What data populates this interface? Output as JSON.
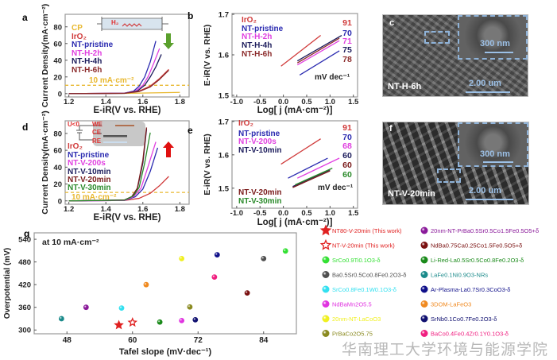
{
  "chart_data": [
    {
      "panel_label": "a",
      "type": "line",
      "xlabel": "E-iR(V vs. RHE)",
      "ylabel": "Current Density(mA·cm⁻²)",
      "xlim": [
        1.18,
        1.85
      ],
      "ylim": [
        -4,
        95
      ],
      "xticks": [
        "1.2",
        "1.4",
        "1.6",
        "1.8"
      ],
      "yticks": [
        "0",
        "20",
        "40",
        "60",
        "80"
      ],
      "reference": {
        "y": 10,
        "label": "10 mA·cm⁻²",
        "color": "#e8b830"
      },
      "arrow": {
        "direction": "down",
        "color": "#5aa02c"
      },
      "inset_labels": [
        "H₂"
      ],
      "series": [
        {
          "name": "CP",
          "color": "#e8b830",
          "points": [
            [
              1.2,
              0
            ],
            [
              1.5,
              0.3
            ],
            [
              1.8,
              1.5
            ]
          ]
        },
        {
          "name": "IrO₂",
          "color": "#d03a3a",
          "points": [
            [
              1.2,
              0
            ],
            [
              1.5,
              0.5
            ],
            [
              1.58,
              3
            ],
            [
              1.64,
              9
            ],
            [
              1.69,
              18
            ],
            [
              1.74,
              29
            ]
          ]
        },
        {
          "name": "NT-pristine",
          "color": "#2a2ab0",
          "points": [
            [
              1.2,
              0
            ],
            [
              1.5,
              0.5
            ],
            [
              1.55,
              3
            ],
            [
              1.58,
              9
            ],
            [
              1.61,
              20
            ],
            [
              1.64,
              38
            ],
            [
              1.67,
              63
            ]
          ]
        },
        {
          "name": "NT-H-2h",
          "color": "#e040e0",
          "points": [
            [
              1.2,
              0
            ],
            [
              1.5,
              0.4
            ],
            [
              1.56,
              3
            ],
            [
              1.6,
              10
            ],
            [
              1.63,
              21
            ],
            [
              1.66,
              37
            ],
            [
              1.69,
              54
            ]
          ]
        },
        {
          "name": "NT-H-4h",
          "color": "#1c1c5c",
          "points": [
            [
              1.2,
              0
            ],
            [
              1.5,
              0.3
            ],
            [
              1.57,
              3
            ],
            [
              1.61,
              10
            ],
            [
              1.64,
              20
            ],
            [
              1.67,
              32
            ],
            [
              1.7,
              47
            ]
          ]
        },
        {
          "name": "NT-H-6h",
          "color": "#8b2a2a",
          "points": [
            [
              1.2,
              0
            ],
            [
              1.5,
              0.4
            ],
            [
              1.58,
              2.5
            ],
            [
              1.64,
              8
            ],
            [
              1.69,
              17
            ],
            [
              1.74,
              28
            ]
          ]
        }
      ]
    },
    {
      "panel_label": "b",
      "type": "line",
      "xlabel": "Log[ j (mA·cm⁻²)]",
      "ylabel": "E-iR(V vs. RHE)",
      "xlim": [
        -1.1,
        1.59
      ],
      "ylim": [
        1.496,
        1.702
      ],
      "xticks": [
        "-1.0",
        "-0.5",
        "0.0",
        "0.5",
        "1.0",
        "1.5"
      ],
      "yticks": [
        "1.5",
        "1.6",
        "1.7"
      ],
      "unit_label": "mV dec⁻¹",
      "series": [
        {
          "name": "IrO₂",
          "color": "#d03a3a",
          "tafel_slope": "91",
          "points": [
            [
              -0.05,
              1.572
            ],
            [
              0.8,
              1.648
            ]
          ]
        },
        {
          "name": "NT-pristine",
          "color": "#2a2ab0",
          "tafel_slope": "70",
          "points": [
            [
              0.35,
              1.55
            ],
            [
              1.2,
              1.61
            ]
          ]
        },
        {
          "name": "NT-H-2h",
          "color": "#e040e0",
          "tafel_slope": "71",
          "points": [
            [
              0.3,
              1.575
            ],
            [
              1.2,
              1.635
            ]
          ]
        },
        {
          "name": "NT-H-4h",
          "color": "#1c1c5c",
          "tafel_slope": "75",
          "points": [
            [
              0.3,
              1.585
            ],
            [
              1.25,
              1.648
            ]
          ]
        },
        {
          "name": "NT-H-6h",
          "color": "#8b2a2a",
          "tafel_slope": "78",
          "points": [
            [
              0.3,
              1.58
            ],
            [
              1.2,
              1.641
            ]
          ]
        }
      ]
    },
    {
      "panel_label": "d",
      "type": "line",
      "xlabel": "E-iR(V vs. RHE)",
      "ylabel": "Current Density(mA·cm⁻²)",
      "xlim": [
        1.18,
        1.85
      ],
      "ylim": [
        -4,
        95
      ],
      "xticks": [
        "1.2",
        "1.4",
        "1.6",
        "1.8"
      ],
      "yticks": [
        "0",
        "20",
        "40",
        "60",
        "80"
      ],
      "reference": {
        "y": 10,
        "label": "10 mA·cm⁻²",
        "color": "#e8b830"
      },
      "arrow": {
        "direction": "up",
        "color": "#e01010"
      },
      "inset_labels": [
        "U<0",
        "WE",
        "CE",
        "RE"
      ],
      "series": [
        {
          "name": "IrO₂",
          "color": "#d03a3a",
          "points": [
            [
              1.2,
              0
            ],
            [
              1.5,
              0.5
            ],
            [
              1.58,
              3
            ],
            [
              1.64,
              9
            ],
            [
              1.69,
              18
            ],
            [
              1.74,
              29
            ]
          ]
        },
        {
          "name": "NT-pristine",
          "color": "#2a2ab0",
          "points": [
            [
              1.2,
              0
            ],
            [
              1.5,
              0.5
            ],
            [
              1.56,
              5
            ],
            [
              1.6,
              14
            ],
            [
              1.64,
              35
            ],
            [
              1.68,
              63
            ]
          ]
        },
        {
          "name": "NT-V-200s",
          "color": "#e040e0",
          "points": [
            [
              1.2,
              0
            ],
            [
              1.5,
              0.5
            ],
            [
              1.55,
              5
            ],
            [
              1.59,
              15
            ],
            [
              1.63,
              42
            ],
            [
              1.67,
              70
            ]
          ]
        },
        {
          "name": "NT-V-10min",
          "color": "#1c1c5c",
          "points": [
            [
              1.2,
              0
            ],
            [
              1.5,
              1
            ],
            [
              1.54,
              5
            ],
            [
              1.57,
              14
            ],
            [
              1.6,
              45
            ],
            [
              1.62,
              85
            ]
          ]
        },
        {
          "name": "NT-V-20min",
          "color": "#7a1a1a",
          "points": [
            [
              1.2,
              0
            ],
            [
              1.5,
              1
            ],
            [
              1.54,
              5
            ],
            [
              1.57,
              15
            ],
            [
              1.6,
              48
            ],
            [
              1.62,
              87
            ]
          ]
        },
        {
          "name": "NT-V-30min",
          "color": "#2a8a2a",
          "points": [
            [
              1.2,
              0
            ],
            [
              1.5,
              0.8
            ],
            [
              1.55,
              6
            ],
            [
              1.58,
              16
            ],
            [
              1.61,
              45
            ],
            [
              1.64,
              81
            ]
          ]
        }
      ]
    },
    {
      "panel_label": "e",
      "type": "line",
      "xlabel": "Log[ j (mA·cm⁻²)]",
      "ylabel": "E-iR(V vs. RHE)",
      "xlim": [
        -1.1,
        1.59
      ],
      "ylim": [
        1.44,
        1.702
      ],
      "xticks": [
        "-1.0",
        "-0.5",
        "0.0",
        "0.5",
        "1.0",
        "1.5"
      ],
      "yticks": [
        "1.5",
        "1.6",
        "1.7"
      ],
      "unit_label": "mV dec⁻¹",
      "series": [
        {
          "name": "IrO₂",
          "color": "#d03a3a",
          "tafel_slope": "91",
          "points": [
            [
              -0.05,
              1.572
            ],
            [
              0.8,
              1.648
            ]
          ]
        },
        {
          "name": "NT-pristine",
          "color": "#2a2ab0",
          "tafel_slope": "70",
          "points": [
            [
              0.1,
              1.53
            ],
            [
              0.95,
              1.59
            ]
          ]
        },
        {
          "name": "NT-V-200s",
          "color": "#e040e0",
          "tafel_slope": "68",
          "points": [
            [
              0.3,
              1.53
            ],
            [
              1.2,
              1.59
            ]
          ]
        },
        {
          "name": "NT-V-10min",
          "color": "#1c1c5c",
          "tafel_slope": "60",
          "points": [
            [
              0.2,
              1.505
            ],
            [
              1.0,
              1.555
            ]
          ]
        },
        {
          "name": "NT-V-20min",
          "color": "#7a1a1a",
          "tafel_slope": "60",
          "points": [
            [
              0.2,
              1.502
            ],
            [
              1.0,
              1.552
            ]
          ]
        },
        {
          "name": "NT-V-30min",
          "color": "#2a8a2a",
          "tafel_slope": "60",
          "points": [
            [
              0.25,
              1.51
            ],
            [
              1.05,
              1.56
            ]
          ]
        }
      ]
    },
    {
      "panel_label": "g",
      "type": "scatter",
      "annotation": "at 10 mA·cm⁻²",
      "xlabel": "Tafel slope (mV·dec⁻¹)",
      "ylabel": "Overpotential (mV)",
      "xlim": [
        42,
        90
      ],
      "ylim": [
        290,
        557
      ],
      "xticks": [
        "48",
        "60",
        "72",
        "84"
      ],
      "yticks": [
        "300",
        "360",
        "420",
        "480",
        "540"
      ],
      "legend": "right",
      "series": [
        {
          "name": "NT80-V-20min (This work)",
          "marker": "star-filled",
          "color": "#e02020",
          "x": 57.5,
          "y": 313
        },
        {
          "name": "NT-V-20min (This work)",
          "marker": "star-open",
          "color": "#e02020",
          "x": 60,
          "y": 320
        },
        {
          "name": "SrCo0.9Ti0.1O3-δ",
          "marker": "sphere",
          "color": "#33e033",
          "x": 88,
          "y": 509
        },
        {
          "name": "Ba0.5Sr0.5Co0.8Fe0.2O3-δ",
          "marker": "sphere",
          "color": "#505050",
          "x": 84,
          "y": 489
        },
        {
          "name": "SrCo0.8Fe0.1W0.1O3-δ",
          "marker": "sphere",
          "color": "#33e0f0",
          "x": 58,
          "y": 358
        },
        {
          "name": "NdBaMn2O5.5",
          "marker": "sphere",
          "color": "#e033e0",
          "x": 69,
          "y": 325
        },
        {
          "name": "20nm-NT-LaCoO3",
          "marker": "sphere",
          "color": "#f0f020",
          "x": 69,
          "y": 489
        },
        {
          "name": "PrBaCo2O5.75",
          "marker": "sphere",
          "color": "#8a8a20",
          "x": 70.5,
          "y": 361
        },
        {
          "name": "20nm-NT-PrBa0.5Sr0.5Co1.5Fe0.5O5+δ",
          "marker": "sphere",
          "color": "#8a1a9a",
          "x": 51.5,
          "y": 360
        },
        {
          "name": "NdBa0.75Ca0.25Co1.5Fe0.5O5+δ",
          "marker": "sphere",
          "color": "#7a1010",
          "x": 81,
          "y": 398
        },
        {
          "name": "Li-Red-La0.5Sr0.5Co0.8Fe0.2O3-δ",
          "marker": "sphere",
          "color": "#1a8a1a",
          "x": 65,
          "y": 321
        },
        {
          "name": "LaFe0.1Ni0.9O3-NRs",
          "marker": "sphere",
          "color": "#1a8a8a",
          "x": 47,
          "y": 330
        },
        {
          "name": "Ar-Plasma-La0.7Sr0.3CoO3-δ",
          "marker": "sphere",
          "color": "#10108a",
          "x": 75.5,
          "y": 499
        },
        {
          "name": "3DOM-LaFeO3",
          "marker": "sphere",
          "color": "#f08a20",
          "x": 62.5,
          "y": 420
        },
        {
          "name": "SrNb0.1Co0.7Fe0.2O3-δ",
          "marker": "sphere",
          "color": "#101070",
          "x": 71.5,
          "y": 327
        },
        {
          "name": "BaCo0.4Fe0.4Zr0.1Y0.1O3-δ",
          "marker": "sphere",
          "color": "#f02080",
          "x": 75,
          "y": 440
        }
      ]
    }
  ],
  "sem": {
    "c": {
      "panel_label": "c",
      "sample": "NT-H-6h",
      "inset_scale": "300 nm",
      "scale": "2.00 um"
    },
    "f": {
      "panel_label": "f",
      "sample": "NT-V-20min",
      "inset_scale": "300 nm",
      "scale": "2.00 um"
    }
  },
  "watermark": "华南理工大学环境与能源学院"
}
